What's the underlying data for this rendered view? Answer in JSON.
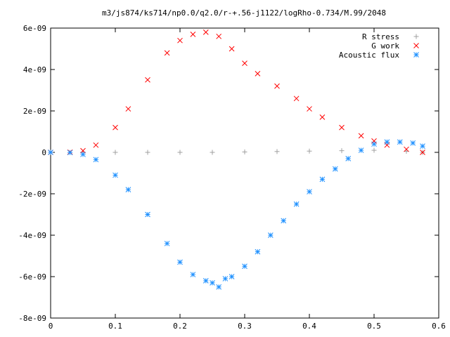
{
  "chart_data": {
    "type": "scatter",
    "title": "m3/js874/ks714/np0.0/q2.0/r-+.56-j1122/logRho-0.734/M.99/2048",
    "xlabel": "",
    "ylabel": "",
    "xlim": [
      0,
      0.6
    ],
    "ylim": [
      -8e-09,
      6e-09
    ],
    "grid": false,
    "legend_position": "top-right",
    "x_ticks": [
      {
        "value": 0,
        "label": "0"
      },
      {
        "value": 0.1,
        "label": "0.1"
      },
      {
        "value": 0.2,
        "label": "0.2"
      },
      {
        "value": 0.3,
        "label": "0.3"
      },
      {
        "value": 0.4,
        "label": "0.4"
      },
      {
        "value": 0.5,
        "label": "0.5"
      },
      {
        "value": 0.6,
        "label": "0.6"
      }
    ],
    "y_ticks": [
      {
        "value": 6e-09,
        "label": "6e-09"
      },
      {
        "value": 4e-09,
        "label": "4e-09"
      },
      {
        "value": 2e-09,
        "label": "2e-09"
      },
      {
        "value": 0,
        "label": "0"
      },
      {
        "value": -2e-09,
        "label": "-2e-09"
      },
      {
        "value": -4e-09,
        "label": "-4e-09"
      },
      {
        "value": -6e-09,
        "label": "-6e-09"
      },
      {
        "value": -8e-09,
        "label": "-8e-09"
      }
    ],
    "series": [
      {
        "name": "R stress",
        "marker": "plus",
        "color": "#a0a0a0",
        "x": [
          0,
          0.05,
          0.1,
          0.15,
          0.2,
          0.25,
          0.3,
          0.35,
          0.4,
          0.45,
          0.5,
          0.55,
          0.575
        ],
        "y": [
          0,
          0,
          0,
          0,
          0,
          0,
          2e-11,
          4e-11,
          6e-11,
          8e-11,
          1e-10,
          5e-11,
          0
        ]
      },
      {
        "name": "G work",
        "marker": "cross",
        "color": "#ff0000",
        "x": [
          0,
          0.03,
          0.05,
          0.07,
          0.1,
          0.12,
          0.15,
          0.18,
          0.2,
          0.22,
          0.24,
          0.26,
          0.28,
          0.3,
          0.32,
          0.35,
          0.38,
          0.4,
          0.42,
          0.45,
          0.48,
          0.5,
          0.52,
          0.55,
          0.575
        ],
        "y": [
          0,
          1e-11,
          8e-11,
          3.5e-10,
          1.2e-09,
          2.1e-09,
          3.5e-09,
          4.8e-09,
          5.4e-09,
          5.7e-09,
          5.8e-09,
          5.6e-09,
          5e-09,
          4.3e-09,
          3.8e-09,
          3.2e-09,
          2.6e-09,
          2.1e-09,
          1.7e-09,
          1.2e-09,
          8e-10,
          5.5e-10,
          3.5e-10,
          1.5e-10,
          0
        ]
      },
      {
        "name": "Acoustic flux",
        "marker": "star",
        "color": "#1e90ff",
        "x": [
          0,
          0.03,
          0.05,
          0.07,
          0.1,
          0.12,
          0.15,
          0.18,
          0.2,
          0.22,
          0.24,
          0.25,
          0.26,
          0.27,
          0.28,
          0.3,
          0.32,
          0.34,
          0.36,
          0.38,
          0.4,
          0.42,
          0.44,
          0.46,
          0.48,
          0.5,
          0.52,
          0.54,
          0.56,
          0.575
        ],
        "y": [
          0,
          -1e-11,
          -1e-10,
          -3.5e-10,
          -1.1e-09,
          -1.8e-09,
          -3e-09,
          -4.4e-09,
          -5.3e-09,
          -5.9e-09,
          -6.2e-09,
          -6.3e-09,
          -6.5e-09,
          -6.1e-09,
          -6e-09,
          -5.5e-09,
          -4.8e-09,
          -4e-09,
          -3.3e-09,
          -2.5e-09,
          -1.9e-09,
          -1.3e-09,
          -8e-10,
          -3e-10,
          1e-10,
          4e-10,
          5e-10,
          5e-10,
          4.5e-10,
          3e-10
        ]
      }
    ]
  }
}
